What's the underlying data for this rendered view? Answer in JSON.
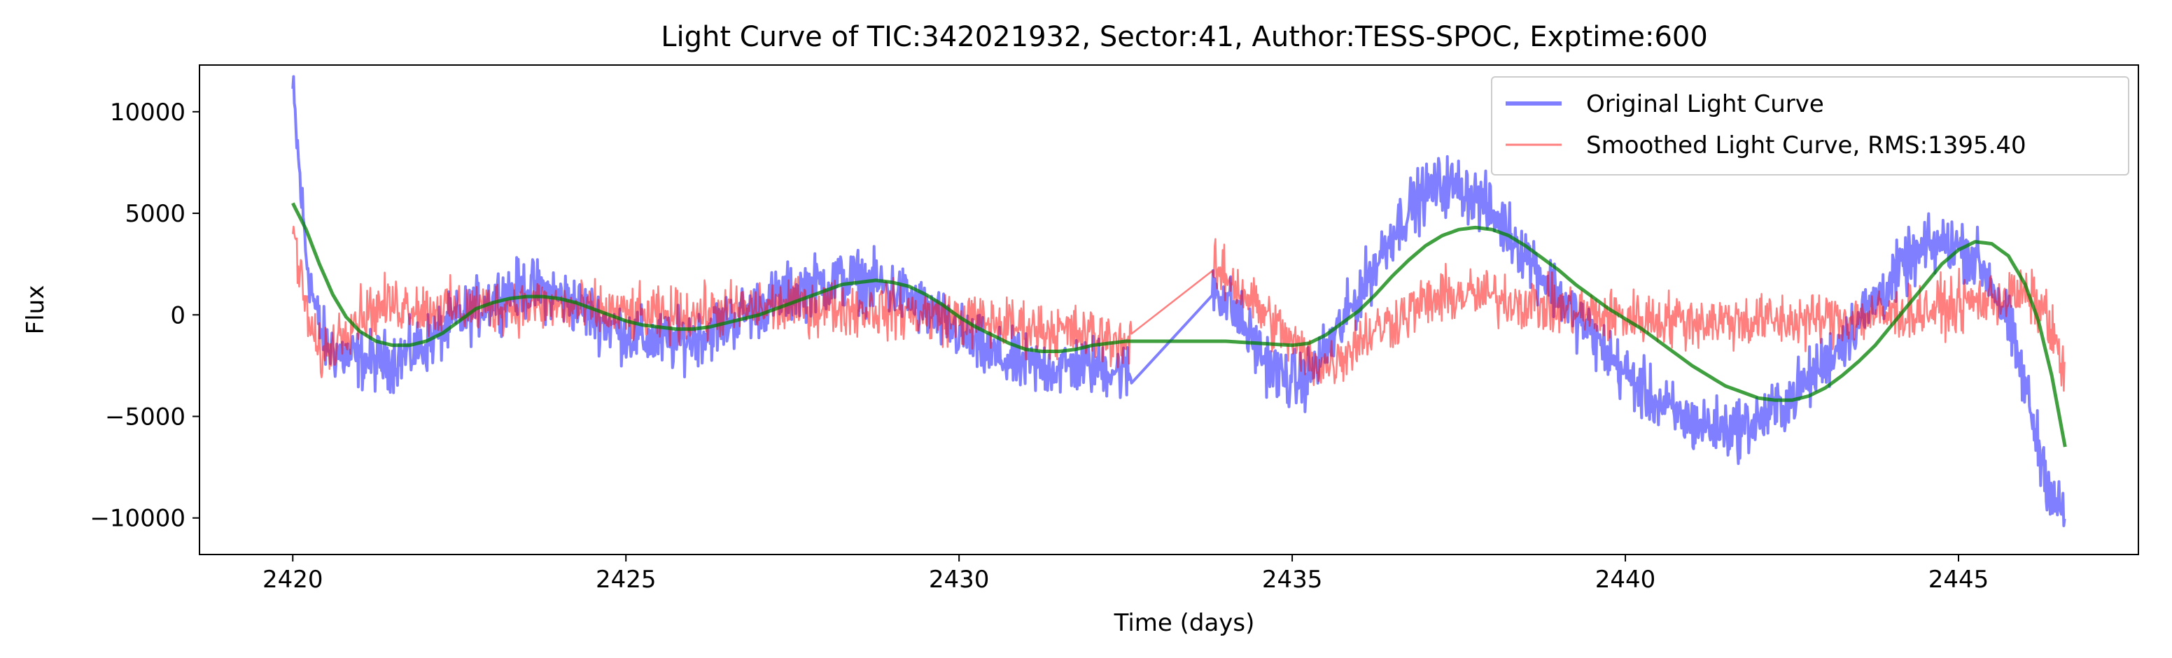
{
  "chart_data": {
    "type": "line",
    "title": "Light Curve of TIC:342021932, Sector:41, Author:TESS-SPOC, Exptime:600",
    "xlabel": "Time (days)",
    "ylabel": "Flux",
    "xlim": [
      2418.6,
      2447.7
    ],
    "ylim": [
      -11800,
      12300
    ],
    "xticks": [
      2420,
      2425,
      2430,
      2435,
      2440,
      2445
    ],
    "yticks": [
      -10000,
      -5000,
      0,
      5000,
      10000
    ],
    "xtick_labels": [
      "2420",
      "2425",
      "2430",
      "2435",
      "2440",
      "2445"
    ],
    "ytick_labels": [
      "−10000",
      "−5000",
      "0",
      "5000",
      "10000"
    ],
    "grid": false,
    "legend_position": "upper right",
    "series": [
      {
        "name": "Original Light Curve",
        "color": "#0000ff",
        "opacity": 0.5,
        "noise": 1300,
        "x": [
          2420.0,
          2420.1,
          2420.2,
          2420.35,
          2420.5,
          2420.75,
          2421.0,
          2421.25,
          2421.5,
          2421.75,
          2422.0,
          2422.25,
          2422.5,
          2422.75,
          2423.0,
          2423.25,
          2423.5,
          2423.75,
          2424.0,
          2424.25,
          2424.5,
          2424.75,
          2425.0,
          2425.25,
          2425.5,
          2425.75,
          2426.0,
          2426.25,
          2426.5,
          2426.75,
          2427.0,
          2427.25,
          2427.5,
          2427.75,
          2428.0,
          2428.25,
          2428.5,
          2428.75,
          2429.0,
          2429.25,
          2429.5,
          2429.75,
          2430.0,
          2430.25,
          2430.5,
          2430.75,
          2431.0,
          2431.25,
          2431.5,
          2431.75,
          2432.0,
          2432.25,
          2432.5,
          2432.6,
          2433.8,
          2434.0,
          2434.25,
          2434.5,
          2434.75,
          2435.0,
          2435.25,
          2435.5,
          2435.75,
          2436.0,
          2436.25,
          2436.5,
          2436.75,
          2437.0,
          2437.25,
          2437.5,
          2437.75,
          2438.0,
          2438.25,
          2438.5,
          2438.75,
          2439.0,
          2439.25,
          2439.5,
          2439.75,
          2440.0,
          2440.25,
          2440.5,
          2440.75,
          2441.0,
          2441.25,
          2441.5,
          2441.75,
          2442.0,
          2442.25,
          2442.5,
          2442.75,
          2443.0,
          2443.25,
          2443.5,
          2443.75,
          2444.0,
          2444.25,
          2444.5,
          2444.75,
          2445.0,
          2445.25,
          2445.5,
          2445.75,
          2446.0,
          2446.2,
          2446.4,
          2446.55,
          2446.6
        ],
        "y": [
          11000,
          7000,
          3000,
          0,
          -1500,
          -2000,
          -2200,
          -2300,
          -2200,
          -1900,
          -1400,
          -800,
          -200,
          300,
          800,
          1100,
          1300,
          1200,
          900,
          500,
          0,
          -500,
          -900,
          -1200,
          -1300,
          -1300,
          -1100,
          -800,
          -400,
          0,
          400,
          800,
          1100,
          1400,
          1600,
          1700,
          1700,
          1500,
          1200,
          800,
          200,
          -400,
          -900,
          -1500,
          -2000,
          -2300,
          -2500,
          -2600,
          -2600,
          -2500,
          -2500,
          -2600,
          -2800,
          -3200,
          1500,
          800,
          -400,
          -1800,
          -2800,
          -3300,
          -3000,
          -1800,
          -500,
          1000,
          2500,
          4000,
          5200,
          6000,
          6400,
          6300,
          5800,
          5000,
          4100,
          3100,
          2000,
          1000,
          0,
          -1000,
          -2000,
          -2900,
          -3700,
          -4400,
          -4900,
          -5300,
          -5500,
          -5600,
          -5500,
          -5200,
          -4700,
          -4000,
          -3200,
          -2300,
          -1300,
          -300,
          700,
          1700,
          2600,
          3200,
          3500,
          3400,
          2800,
          1600,
          -500,
          -3500,
          -6500,
          -8800,
          -9800,
          -10000
        ]
      },
      {
        "name": "Smoothed Light Curve, RMS:1395.40",
        "color": "#ff0000",
        "opacity": 0.5,
        "noise": 1200,
        "x": [
          2420.0,
          2420.1,
          2420.25,
          2420.4,
          2420.6,
          2420.8,
          2421.0,
          2421.25,
          2421.5,
          2421.75,
          2422.0,
          2422.5,
          2423.0,
          2423.5,
          2424.0,
          2424.5,
          2425.0,
          2425.5,
          2426.0,
          2426.5,
          2427.0,
          2427.5,
          2428.0,
          2428.5,
          2429.0,
          2429.5,
          2430.0,
          2430.5,
          2431.0,
          2431.5,
          2432.0,
          2432.3,
          2432.6,
          2433.8,
          2434.0,
          2434.25,
          2434.5,
          2434.75,
          2435.0,
          2435.25,
          2435.5,
          2435.75,
          2436.0,
          2436.5,
          2437.0,
          2437.5,
          2438.0,
          2438.5,
          2439.0,
          2439.5,
          2440.0,
          2440.5,
          2441.0,
          2441.5,
          2442.0,
          2442.5,
          2443.0,
          2443.5,
          2444.0,
          2444.5,
          2445.0,
          2445.5,
          2446.0,
          2446.3,
          2446.6
        ],
        "y": [
          4500,
          2000,
          -500,
          -2000,
          -1500,
          -500,
          0,
          300,
          500,
          500,
          300,
          300,
          400,
          500,
          400,
          200,
          0,
          -100,
          0,
          200,
          300,
          400,
          400,
          300,
          200,
          0,
          -200,
          -400,
          -600,
          -800,
          -1000,
          -1200,
          -1400,
          2200,
          1900,
          1200,
          300,
          -500,
          -1400,
          -2200,
          -2500,
          -2000,
          -1200,
          -300,
          600,
          1000,
          900,
          600,
          300,
          0,
          -100,
          -200,
          -300,
          -300,
          -300,
          -300,
          -200,
          -100,
          0,
          200,
          500,
          800,
          1000,
          200,
          -3000
        ]
      },
      {
        "name": "",
        "color": "#008000",
        "opacity": 0.75,
        "noise": 0,
        "x": [
          2420.0,
          2420.2,
          2420.4,
          2420.6,
          2420.8,
          2421.0,
          2421.25,
          2421.5,
          2421.75,
          2422.0,
          2422.25,
          2422.5,
          2422.75,
          2423.0,
          2423.25,
          2423.5,
          2423.75,
          2424.0,
          2424.25,
          2424.5,
          2424.75,
          2425.0,
          2425.25,
          2425.5,
          2425.75,
          2426.0,
          2426.25,
          2426.5,
          2426.75,
          2427.0,
          2427.25,
          2427.5,
          2427.75,
          2428.0,
          2428.25,
          2428.5,
          2428.75,
          2429.0,
          2429.25,
          2429.5,
          2429.75,
          2430.0,
          2430.25,
          2430.5,
          2430.75,
          2431.0,
          2431.25,
          2431.5,
          2431.75,
          2432.0,
          2432.5,
          2433.0,
          2433.5,
          2434.0,
          2434.5,
          2435.0,
          2435.25,
          2435.5,
          2435.75,
          2436.0,
          2436.25,
          2436.5,
          2436.75,
          2437.0,
          2437.25,
          2437.5,
          2437.75,
          2438.0,
          2438.25,
          2438.5,
          2438.75,
          2439.0,
          2439.25,
          2439.5,
          2439.75,
          2440.0,
          2440.25,
          2440.5,
          2440.75,
          2441.0,
          2441.25,
          2441.5,
          2441.75,
          2442.0,
          2442.25,
          2442.5,
          2442.75,
          2443.0,
          2443.25,
          2443.5,
          2443.75,
          2444.0,
          2444.25,
          2444.5,
          2444.75,
          2445.0,
          2445.25,
          2445.5,
          2445.75,
          2446.0,
          2446.2,
          2446.4,
          2446.6
        ],
        "y": [
          5500,
          4200,
          2500,
          1000,
          -100,
          -800,
          -1300,
          -1500,
          -1500,
          -1300,
          -900,
          -300,
          300,
          600,
          800,
          900,
          900,
          800,
          600,
          300,
          0,
          -300,
          -500,
          -600,
          -700,
          -700,
          -600,
          -400,
          -200,
          0,
          300,
          600,
          900,
          1200,
          1500,
          1600,
          1700,
          1600,
          1400,
          1000,
          500,
          -100,
          -600,
          -1000,
          -1400,
          -1700,
          -1800,
          -1800,
          -1700,
          -1500,
          -1300,
          -1300,
          -1300,
          -1300,
          -1400,
          -1500,
          -1400,
          -1000,
          -400,
          200,
          1000,
          1900,
          2700,
          3400,
          3900,
          4200,
          4300,
          4200,
          3900,
          3400,
          2800,
          2200,
          1500,
          900,
          300,
          -200,
          -700,
          -1300,
          -1900,
          -2500,
          -3000,
          -3500,
          -3800,
          -4100,
          -4200,
          -4200,
          -4000,
          -3600,
          -3000,
          -2300,
          -1500,
          -500,
          500,
          1500,
          2500,
          3200,
          3600,
          3500,
          2900,
          1500,
          -300,
          -3000,
          -6500
        ]
      }
    ],
    "legend": [
      {
        "label": "Original Light Curve",
        "color": "#0000ff"
      },
      {
        "label": "Smoothed Light Curve, RMS:1395.40",
        "color": "#ff0000"
      }
    ]
  }
}
